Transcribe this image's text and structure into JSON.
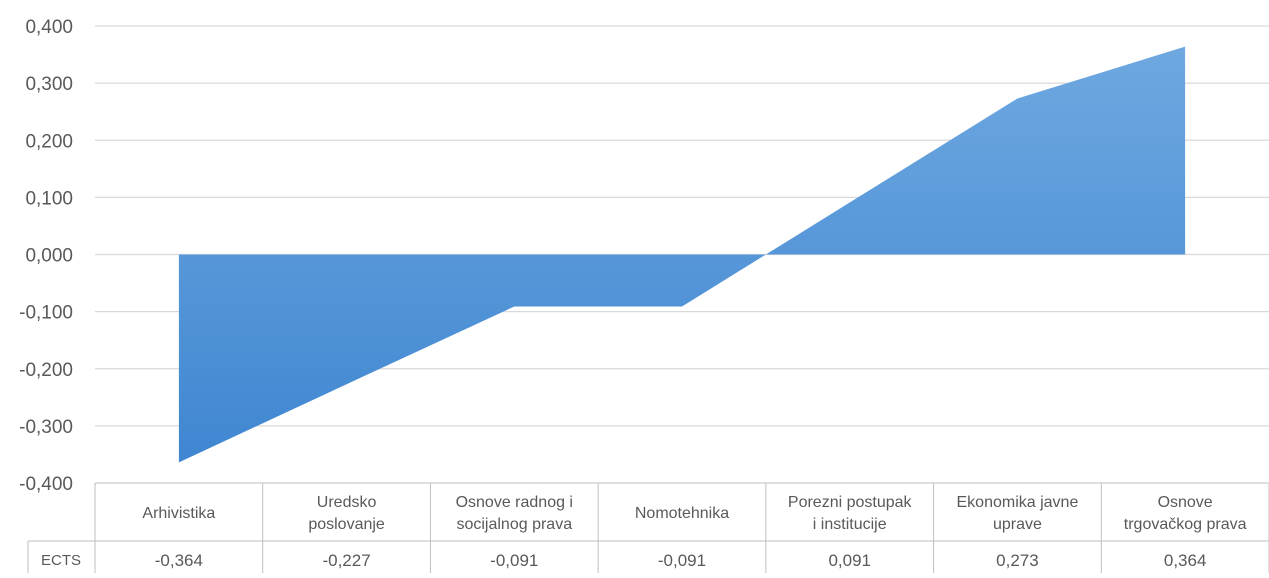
{
  "chart_data": {
    "type": "area",
    "categories": [
      [
        "Arhivistika"
      ],
      [
        "Uredsko",
        "poslovanje"
      ],
      [
        "Osnove radnog i",
        "socijalnog prava"
      ],
      [
        "Nomotehnika"
      ],
      [
        "Porezni postupak",
        "i institucije"
      ],
      [
        "Ekonomika javne",
        "uprave"
      ],
      [
        "Osnove",
        "trgovačkog prava"
      ]
    ],
    "series": [
      {
        "name": "ECTS",
        "values": [
          -0.364,
          -0.227,
          -0.091,
          -0.091,
          0.091,
          0.273,
          0.364
        ],
        "value_labels": [
          "-0,364",
          "-0,227",
          "-0,091",
          "-0,091",
          "0,091",
          "0,273",
          "0,364"
        ],
        "color": "#4A90D9"
      }
    ],
    "ylim": [
      -0.4,
      0.4
    ],
    "yticks": [
      "0,400",
      "0,300",
      "0,200",
      "0,100",
      "0,000",
      "-0,100",
      "-0,200",
      "-0,300",
      "-0,400"
    ],
    "ytick_values": [
      0.4,
      0.3,
      0.2,
      0.1,
      0.0,
      -0.1,
      -0.2,
      -0.3,
      -0.4
    ],
    "grid": true,
    "data_table": true,
    "colors": {
      "gridline": "#D9D9D9",
      "text": "#595959",
      "table_border": "#BFBFBF"
    }
  }
}
